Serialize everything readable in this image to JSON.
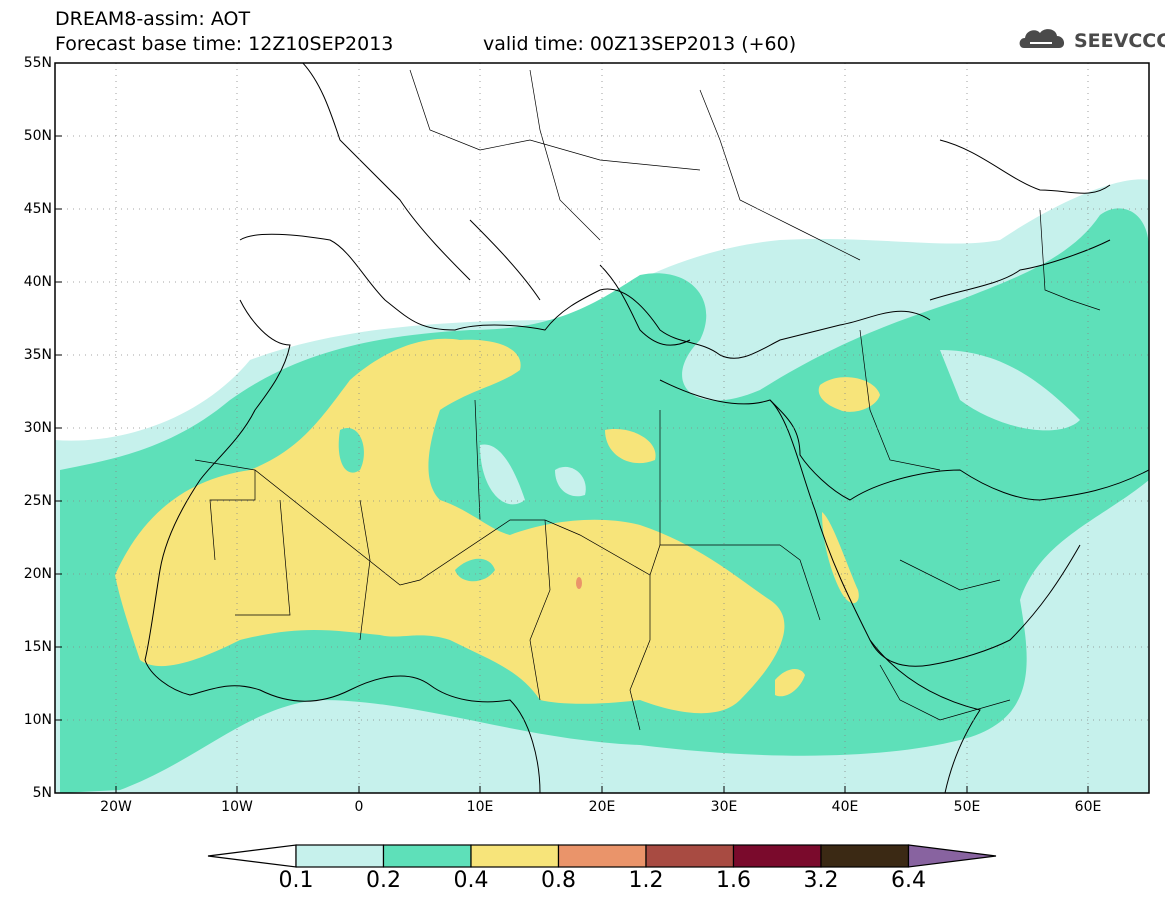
{
  "header": {
    "title_line1": "DREAM8-assim: AOT",
    "base_time": "Forecast base time: 12Z10SEP2013",
    "valid_time": "valid time: 00Z13SEP2013 (+60)",
    "logo_text": "SEEVCCC"
  },
  "axes": {
    "lat_labels": [
      "55N",
      "50N",
      "45N",
      "40N",
      "35N",
      "30N",
      "25N",
      "20N",
      "15N",
      "10N",
      "5N"
    ],
    "lon_labels": [
      "20W",
      "10W",
      "0",
      "10E",
      "20E",
      "30E",
      "40E",
      "50E",
      "60E"
    ]
  },
  "colorbar": {
    "labels": [
      "0.1",
      "0.2",
      "0.4",
      "0.8",
      "1.2",
      "1.6",
      "3.2",
      "6.4"
    ],
    "colors": [
      "#ffffff",
      "#c6f1ec",
      "#5ee0b9",
      "#f7e47a",
      "#ea946a",
      "#a84b42",
      "#7a0a2c",
      "#3b2914",
      "#8863a0"
    ]
  },
  "icons": [
    "cloud-logo-icon"
  ]
}
